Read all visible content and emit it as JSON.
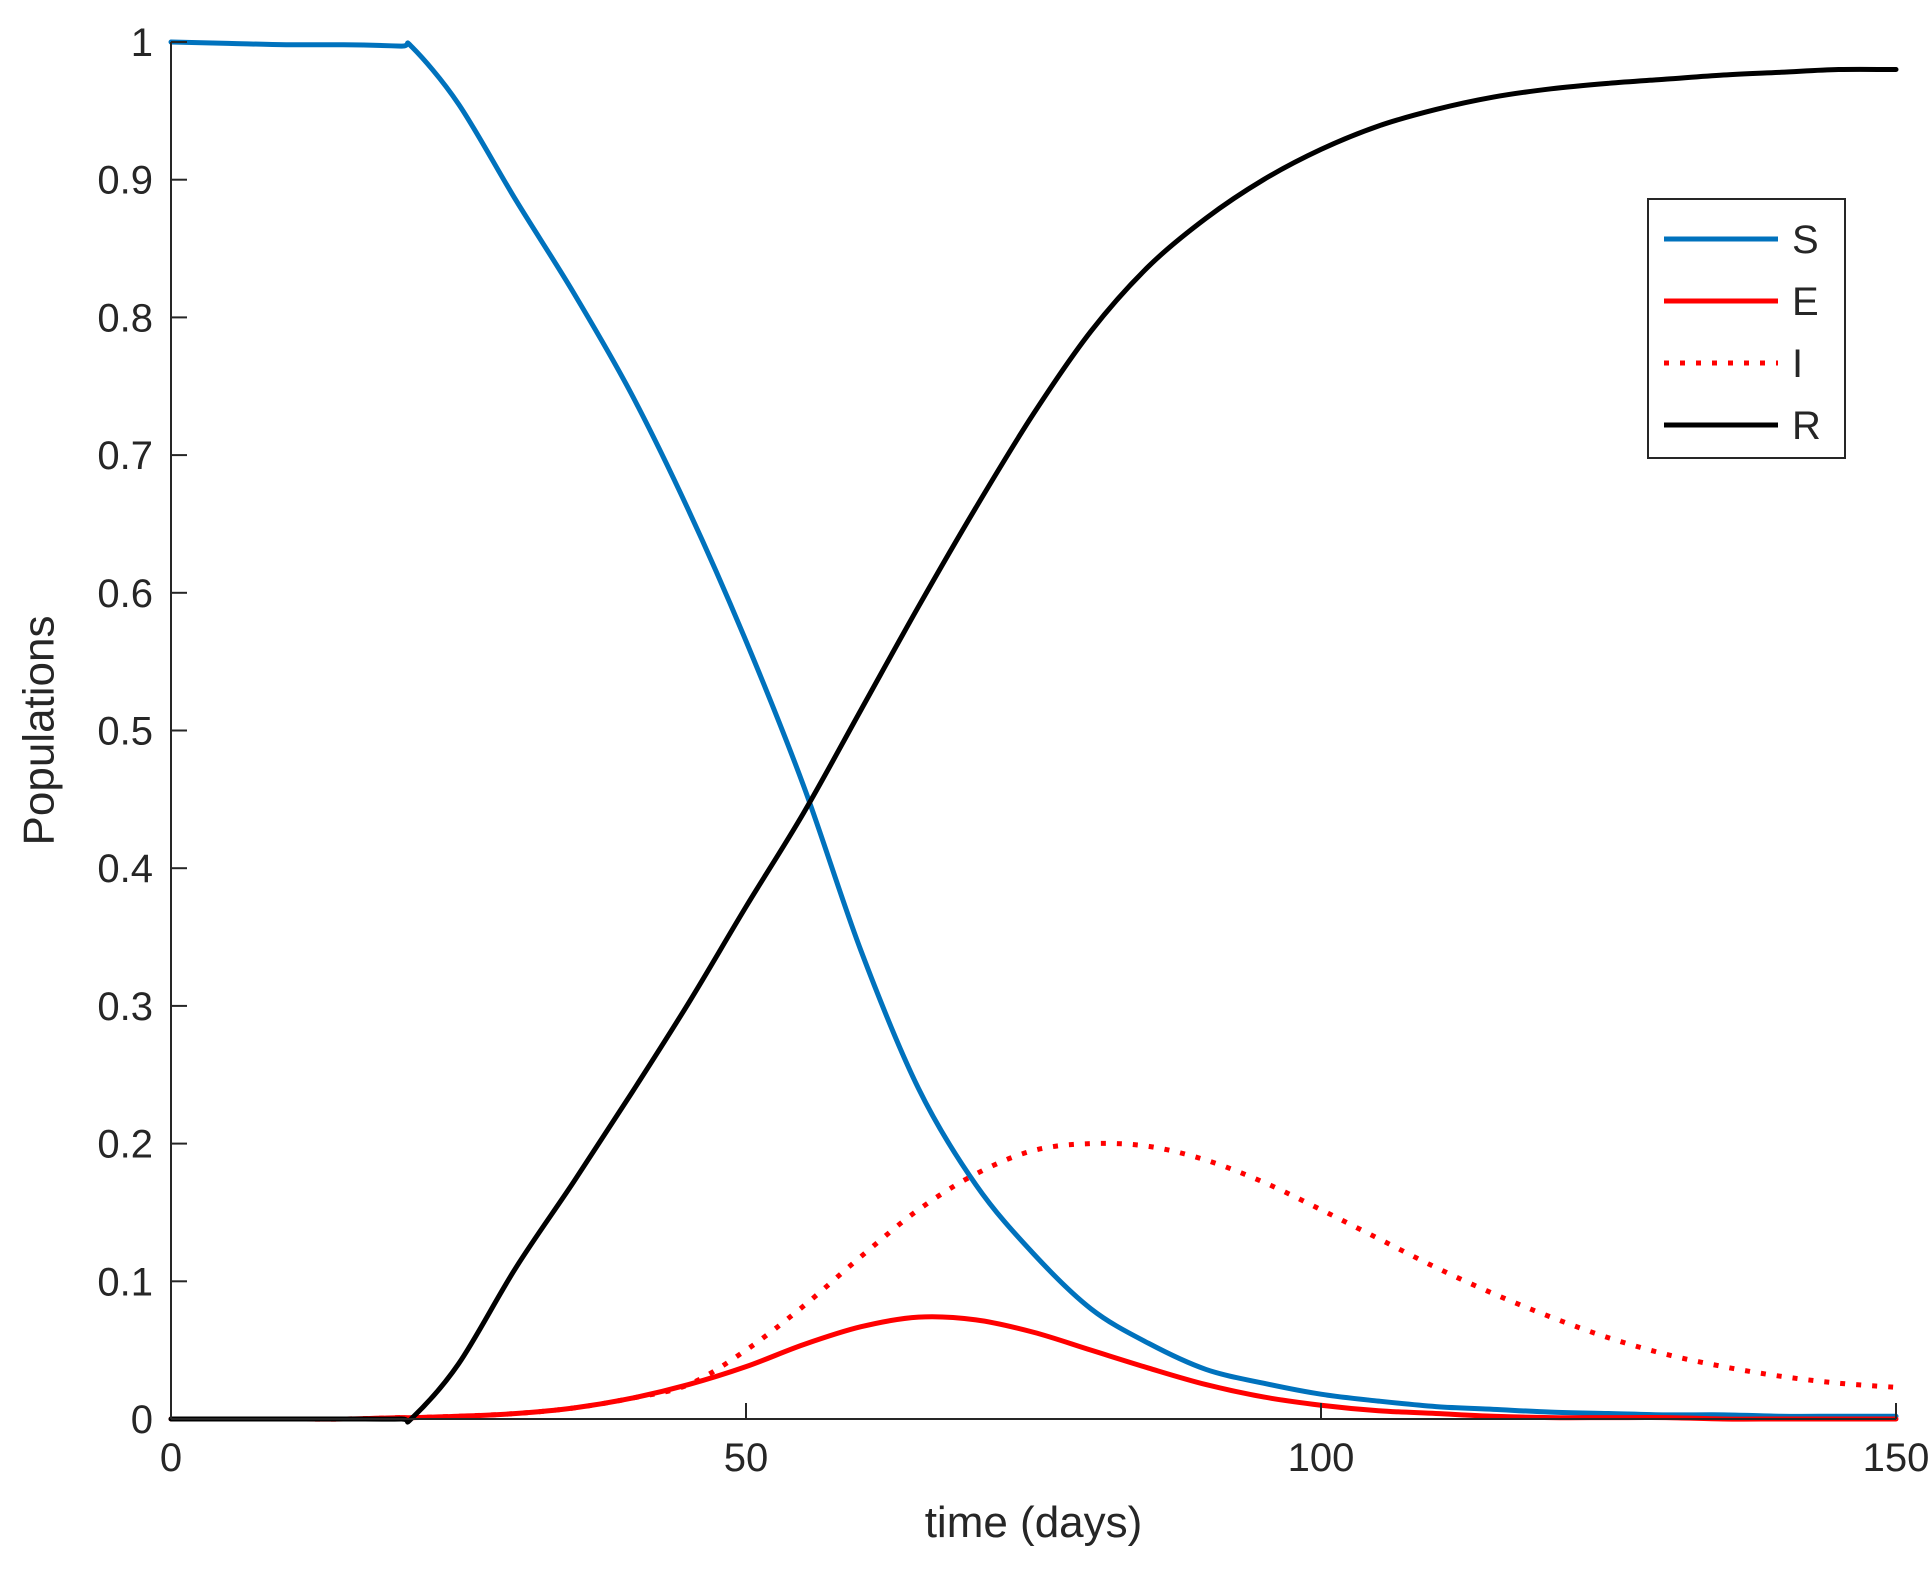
{
  "chart_data": {
    "type": "line",
    "title": "",
    "xlabel": "time (days)",
    "ylabel": "Populations",
    "xlim": [
      0,
      150
    ],
    "ylim": [
      0,
      1
    ],
    "xticks": [
      0,
      50,
      100,
      150
    ],
    "xtick_labels": [
      "0",
      "50",
      "100",
      "150"
    ],
    "yticks": [
      0,
      0.1,
      0.2,
      0.3,
      0.4,
      0.5,
      0.6,
      0.7,
      0.8,
      0.9,
      1
    ],
    "ytick_labels": [
      "0",
      "0.1",
      "0.2",
      "0.3",
      "0.4",
      "0.5",
      "0.6",
      "0.7",
      "0.8",
      "0.9",
      "1"
    ],
    "grid": false,
    "legend_position": "top-right",
    "x": [
      0,
      5,
      10,
      15,
      20,
      21,
      25,
      30,
      35,
      40,
      45,
      50,
      55,
      60,
      65,
      70,
      75,
      80,
      85,
      90,
      95,
      100,
      105,
      110,
      115,
      120,
      125,
      130,
      135,
      140,
      145,
      150
    ],
    "series": [
      {
        "name": "S",
        "color": "#0072BD",
        "style": "solid",
        "values": [
          1.0,
          0.999,
          0.998,
          0.998,
          0.997,
          0.996,
          0.955,
          0.885,
          0.818,
          0.745,
          0.66,
          0.565,
          0.46,
          0.34,
          0.24,
          0.17,
          0.12,
          0.08,
          0.055,
          0.036,
          0.026,
          0.018,
          0.013,
          0.009,
          0.007,
          0.005,
          0.004,
          0.003,
          0.003,
          0.002,
          0.002,
          0.002
        ]
      },
      {
        "name": "E",
        "color": "#FF0000",
        "style": "solid",
        "values": [
          0,
          0,
          0,
          0,
          0.001,
          0.001,
          0.002,
          0.004,
          0.008,
          0.015,
          0.025,
          0.038,
          0.054,
          0.067,
          0.074,
          0.072,
          0.063,
          0.05,
          0.037,
          0.025,
          0.016,
          0.01,
          0.006,
          0.004,
          0.002,
          0.001,
          0.001,
          0.001,
          0,
          0,
          0,
          0
        ]
      },
      {
        "name": "I",
        "color": "#FF0000",
        "style": "dotted",
        "values": [
          0,
          0,
          0,
          0,
          0.001,
          0.001,
          0.002,
          0.004,
          0.008,
          0.015,
          0.025,
          0.05,
          0.082,
          0.118,
          0.152,
          0.178,
          0.195,
          0.2,
          0.198,
          0.188,
          0.172,
          0.152,
          0.131,
          0.11,
          0.091,
          0.074,
          0.059,
          0.047,
          0.038,
          0.031,
          0.026,
          0.023
        ]
      },
      {
        "name": "R",
        "color": "#000000",
        "style": "solid",
        "values": [
          0,
          0,
          0,
          0,
          0,
          0.001,
          0.04,
          0.11,
          0.172,
          0.236,
          0.302,
          0.372,
          0.44,
          0.515,
          0.59,
          0.662,
          0.73,
          0.79,
          0.837,
          0.872,
          0.9,
          0.922,
          0.939,
          0.951,
          0.96,
          0.966,
          0.97,
          0.973,
          0.976,
          0.978,
          0.98,
          0.98
        ]
      }
    ]
  }
}
